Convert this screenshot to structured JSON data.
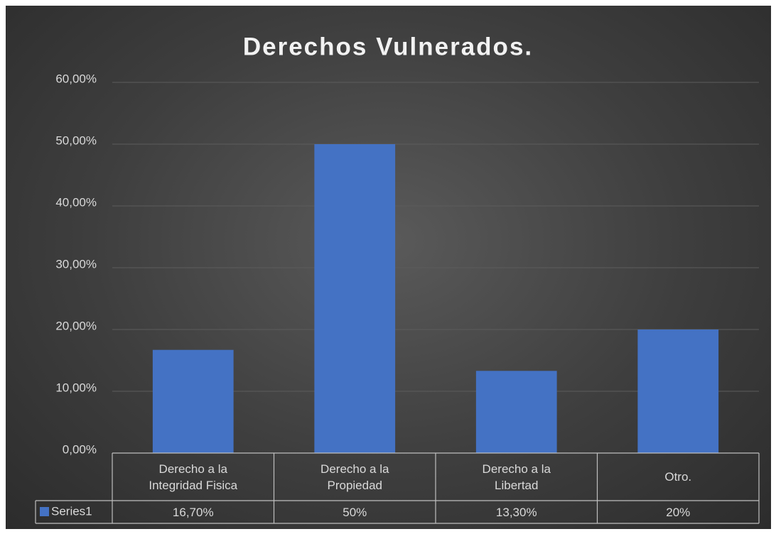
{
  "chart_data": {
    "type": "bar",
    "title": "Derechos Vulnerados.",
    "categories": [
      "Derecho a la Integridad Fisica",
      "Derecho a la Propiedad",
      "Derecho a la Libertad",
      "Otro."
    ],
    "series": [
      {
        "name": "Series1",
        "color": "#4472c4",
        "values": [
          16.7,
          50,
          13.3,
          20
        ],
        "value_labels": [
          "16,70%",
          "50%",
          "13,30%",
          "20%"
        ]
      }
    ],
    "ylim": [
      0,
      60
    ],
    "yticks": [
      {
        "value": 0,
        "label": "0,00%"
      },
      {
        "value": 10,
        "label": "10,00%"
      },
      {
        "value": 20,
        "label": "20,00%"
      },
      {
        "value": 30,
        "label": "30,00%"
      },
      {
        "value": 40,
        "label": "40,00%"
      },
      {
        "value": 50,
        "label": "50,00%"
      },
      {
        "value": 60,
        "label": "60,00%"
      }
    ],
    "grid": true
  }
}
